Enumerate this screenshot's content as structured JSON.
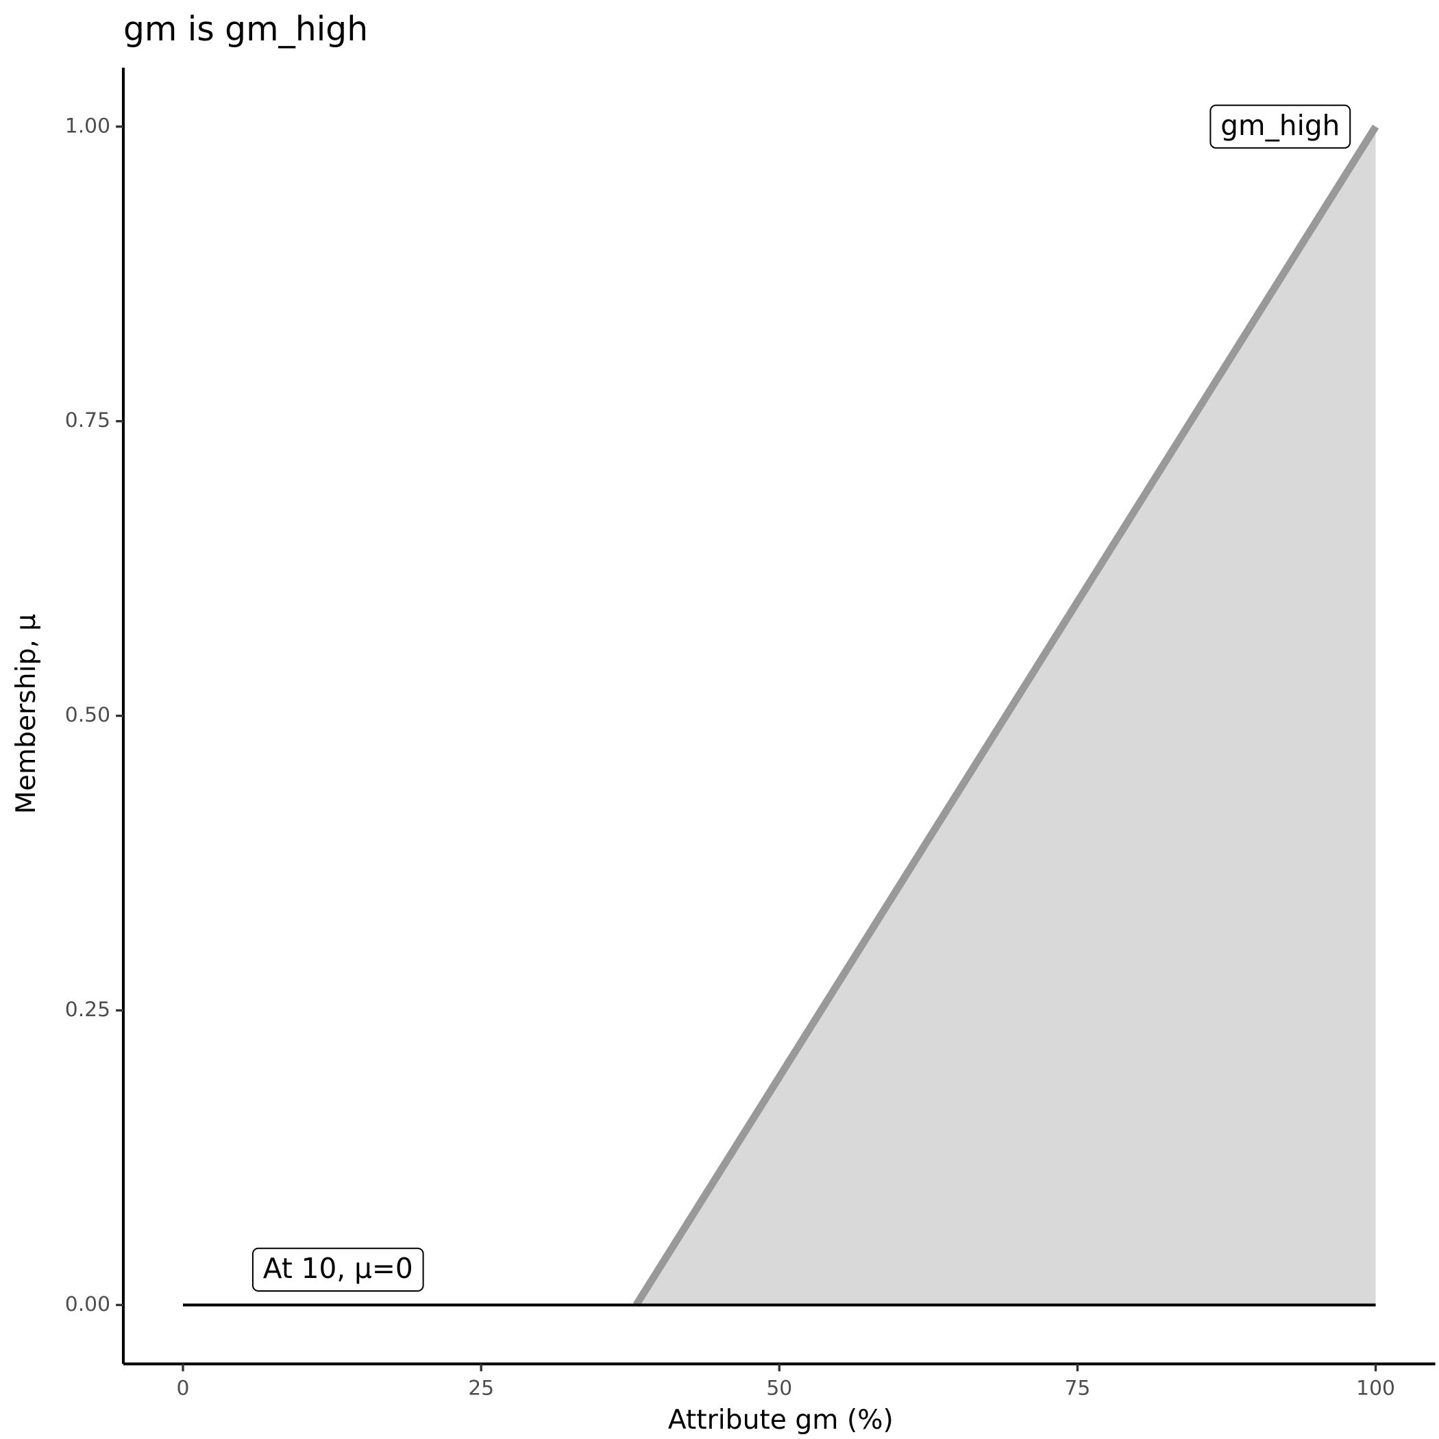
{
  "chart_data": {
    "type": "line",
    "title": "gm is gm_high",
    "x_label": "Attribute gm (%)",
    "y_label": "Membership, μ",
    "xlim": [
      -5,
      105
    ],
    "ylim": [
      -0.05,
      1.05
    ],
    "xticks": [
      0,
      25,
      50,
      75,
      100
    ],
    "yticks": [
      {
        "value": 0,
        "label": "0.00"
      },
      {
        "value": 0.25,
        "label": "0.25"
      },
      {
        "value": 0.5,
        "label": "0.50"
      },
      {
        "value": 0.75,
        "label": "0.75"
      },
      {
        "value": 1,
        "label": "1.00"
      }
    ],
    "series": [
      {
        "x": [
          38,
          100
        ],
        "values": [
          0,
          1
        ],
        "color": "#999999",
        "fill": "#d9d9d9"
      },
      {
        "x": [
          0,
          100
        ],
        "values": [
          0,
          0
        ],
        "color": "#000000"
      }
    ],
    "annotations": [
      {
        "text": "gm_high",
        "x": 92,
        "y": 1
      },
      {
        "text": "At 10, μ=0",
        "x": 13,
        "y": 0.03
      }
    ]
  }
}
